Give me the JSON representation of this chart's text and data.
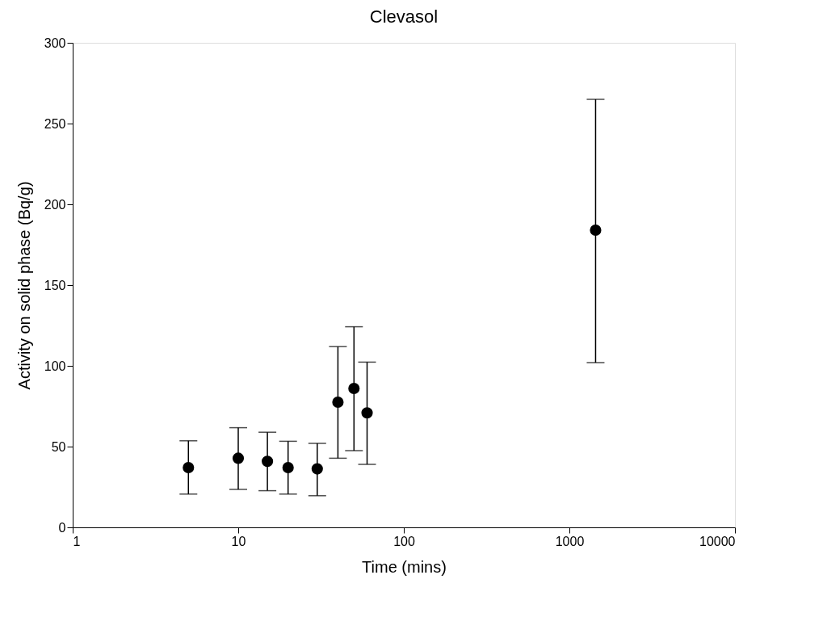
{
  "chart_data": {
    "type": "scatter",
    "title": "Clevasol",
    "xlabel": "Time (mins)",
    "ylabel": "Activity on solid phase (Bq/g)",
    "x": [
      5,
      10,
      15,
      20,
      30,
      40,
      50,
      60,
      1440
    ],
    "series": [
      {
        "color": "#000000",
        "values": [
          37,
          42.8,
          40.9,
          37,
          36.2,
          77.5,
          86,
          70.9,
          184
        ],
        "errors": [
          [
            20.6,
            53.6
          ],
          [
            23.5,
            61.7
          ],
          [
            22.7,
            58.9
          ],
          [
            20.6,
            53.3
          ],
          [
            19.6,
            52
          ],
          [
            42.8,
            111.9
          ],
          [
            47.5,
            124.2
          ],
          [
            39,
            102.3
          ],
          [
            102,
            265
          ]
        ]
      }
    ],
    "log": "x",
    "xlim": [
      1,
      10000
    ],
    "xticks": [
      1,
      10,
      100,
      1000,
      10000
    ],
    "ylim": [
      0,
      300
    ],
    "yticks": [
      0,
      50,
      100,
      150,
      200,
      250,
      300
    ],
    "marker": "circle",
    "grid": false
  }
}
